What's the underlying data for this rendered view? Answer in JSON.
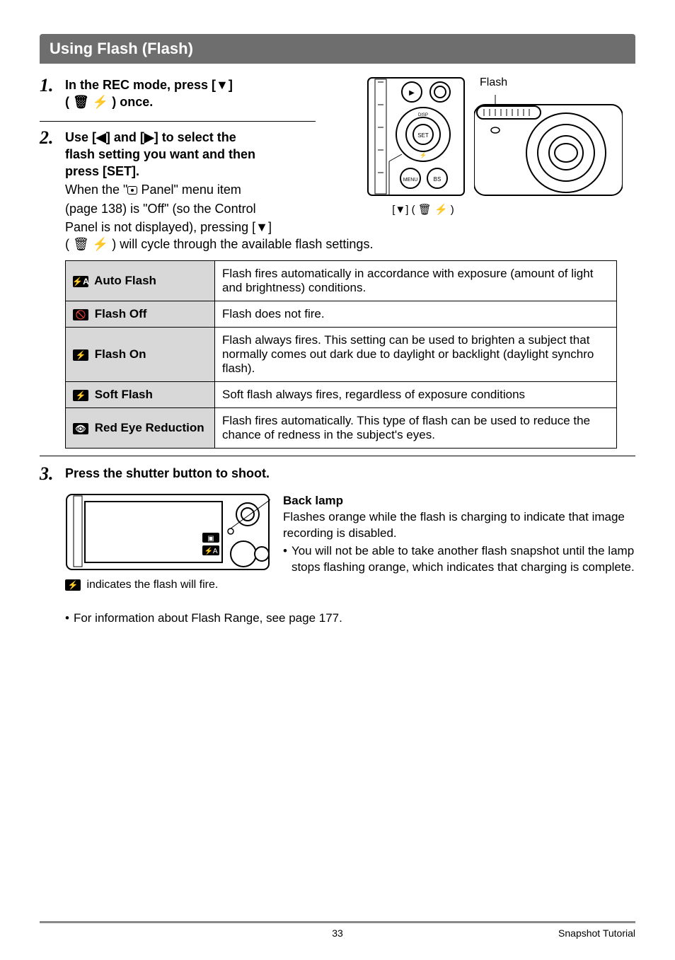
{
  "header": {
    "title": "Using Flash (Flash)"
  },
  "steps": {
    "s1": {
      "num": "1.",
      "title_line1": "In the REC mode, press [▼]",
      "title_line2": "( 🗑 ⚡ ) once."
    },
    "s2": {
      "num": "2.",
      "title_line1": "Use [◀] and [▶] to select the",
      "title_line2": "flash setting you want and then",
      "title_line3": "press [SET].",
      "desc_line1": "When the \"",
      "desc_line1b": " Panel\" menu item",
      "desc_line2": "(page 138) is \"Off\" (so the Control",
      "desc_line3": "Panel is not displayed), pressing [▼]",
      "desc_line4": "( 🗑 ⚡ ) will cycle through the available flash settings."
    },
    "s3": {
      "num": "3.",
      "title": "Press the shutter button to shoot."
    }
  },
  "illus": {
    "flash_caption": "Flash",
    "down_label": "[▼] ( 🗑 ⚡ )"
  },
  "flash_table": {
    "rows": [
      {
        "icon_bg": "#000",
        "icon_text": "⚡A",
        "label": "Auto Flash",
        "desc": "Flash fires automatically in accordance with exposure (amount of light and brightness) conditions."
      },
      {
        "icon_bg": "#000",
        "icon_text": "🚫",
        "label": "Flash Off",
        "desc": "Flash does not fire."
      },
      {
        "icon_bg": "#000",
        "icon_text": "⚡",
        "label": "Flash On",
        "desc": "Flash always fires. This setting can be used to brighten a subject that normally comes out dark due to daylight or backlight (daylight synchro flash)."
      },
      {
        "icon_bg": "#000",
        "icon_text": "⚡",
        "label": "Soft Flash",
        "desc": "Soft flash always fires, regardless of exposure conditions"
      },
      {
        "icon_bg": "#000",
        "icon_text": "👁",
        "label": "Red Eye Reduction",
        "desc": "Flash fires automatically. This type of flash can be used to reduce the chance of redness in the subject's eyes."
      }
    ]
  },
  "step3_block": {
    "lcd_note_prefix": "⚡",
    "lcd_note": " indicates the flash will fire.",
    "lcd_icon_upper": "⚡A",
    "backlamp_title": "Back lamp",
    "backlamp_p": "Flashes orange while the flash is charging to indicate that image recording is disabled.",
    "backlamp_bullet": "You will not be able to take another flash snapshot until the lamp stops flashing orange, which indicates that charging is complete."
  },
  "range_note": "For information about Flash Range, see page 177.",
  "footer": {
    "page": "33",
    "section": "Snapshot Tutorial"
  },
  "colors": {
    "header_bg": "#6e6e6e",
    "label_bg": "#d8d8d8",
    "footer_rule": "#888888"
  }
}
